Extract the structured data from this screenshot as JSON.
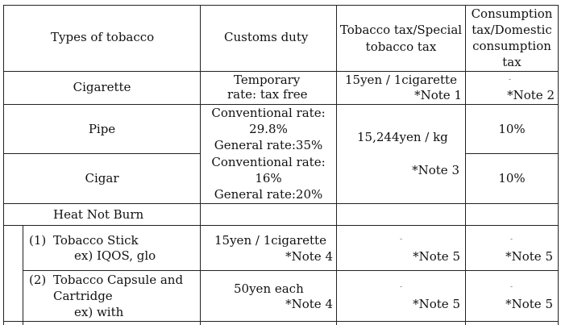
{
  "headers": {
    "types": "Types of tobacco",
    "customs": "Customs duty",
    "tobacco_tax_1": "Tobacco tax/Special",
    "tobacco_tax_2": "tobacco tax",
    "consumption_1": "Consumption",
    "consumption_2": "tax/Domestic",
    "consumption_3": "consumption",
    "consumption_4": "tax"
  },
  "rows": {
    "cigarette": {
      "name": "Cigarette",
      "customs_1": "Temporary",
      "customs_2": "rate: tax free",
      "tobacco_tax": "15yen / 1cigarette",
      "tobacco_note": "*Note 1",
      "consumption_dash": "-",
      "consumption_note": "*Note 2"
    },
    "pipe": {
      "name": "Pipe",
      "customs_1": "Conventional rate:",
      "customs_2": "29.8%",
      "customs_3": "General rate:35%",
      "consumption": "10%"
    },
    "cigar": {
      "name": "Cigar",
      "customs_1": "Conventional rate:",
      "customs_2": "16%",
      "customs_3": "General rate:20%",
      "consumption": "10%"
    },
    "pipe_cigar_tobacco_tax": "15,244yen / kg",
    "pipe_cigar_tobacco_note": "*Note 3",
    "heat_not_burn": {
      "name": "Heat Not Burn"
    },
    "tobacco_stick": {
      "num": "(1)",
      "name_1": "Tobacco Stick",
      "name_2": "ex) IQOS, glo",
      "customs": "15yen / 1cigarette",
      "customs_note": "*Note 4",
      "tobacco_dash": "-",
      "tobacco_note": "*Note 5",
      "consumption_dash": "-",
      "consumption_note": "*Note 5"
    },
    "tobacco_capsule": {
      "num": "(2)",
      "name_1": "Tobacco Capsule and",
      "name_2": "Cartridge",
      "name_3": "ex) with",
      "customs": "50yen each",
      "customs_note": "*Note 4",
      "tobacco_dash": "-",
      "tobacco_note": "*Note 5",
      "consumption_dash": "-",
      "consumption_note": "*Note 5"
    }
  }
}
